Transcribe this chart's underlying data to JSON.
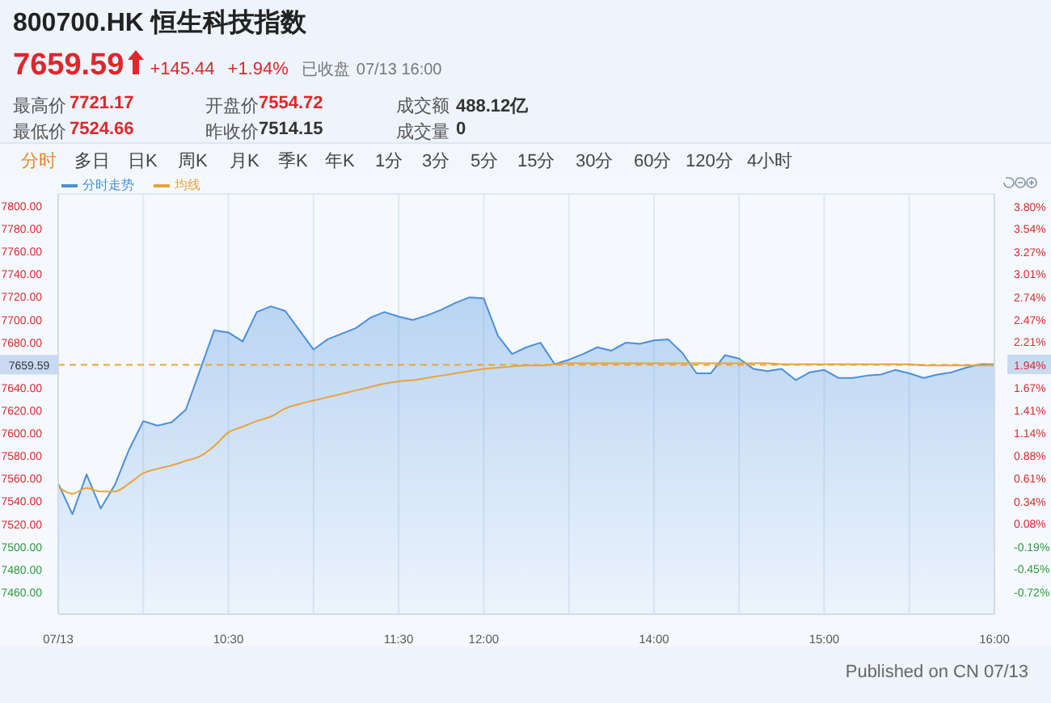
{
  "chart_data": {
    "type": "area",
    "title": "800700.HK 恒生科技指数",
    "annotations": [
      "7659.59",
      "+145.44",
      "+1.94%",
      "已收盘",
      "07/13 16:00",
      "最高价",
      "7721.17",
      "开盘价",
      "7554.72",
      "成交额",
      "488.12亿",
      "最低价",
      "7524.66",
      "昨收价",
      "7514.15",
      "成交量",
      "0",
      "分时",
      "多日",
      "日K",
      "周K",
      "月K",
      "季K",
      "年K",
      "1分",
      "3分",
      "5分",
      "15分",
      "30分",
      "60分",
      "120分",
      "4小时",
      "Published on CN 07/13"
    ],
    "categories": [
      "07/13",
      null,
      null,
      null,
      null,
      null,
      null,
      null,
      null,
      null,
      null,
      null,
      "10:30",
      null,
      null,
      null,
      null,
      null,
      null,
      null,
      null,
      null,
      null,
      null,
      "11:30",
      null,
      null,
      null,
      null,
      null,
      "12:00",
      null,
      null,
      null,
      null,
      null,
      null,
      null,
      null,
      null,
      null,
      null,
      "14:00",
      null,
      null,
      null,
      null,
      null,
      null,
      null,
      null,
      null,
      null,
      null,
      "15:00",
      null,
      null,
      null,
      null,
      null,
      null,
      null,
      null,
      null,
      null,
      null,
      "16:00"
    ],
    "series": [
      {
        "name": "分时走势",
        "color": "#4a8fdc",
        "values": [
          7555,
          7528,
          7563,
          7533,
          7554,
          7585,
          7610,
          7606,
          7609,
          7620,
          7655,
          7690,
          7688,
          7680,
          7706,
          7711,
          7707,
          7690,
          7673,
          7682,
          7687,
          7692,
          7701,
          7706,
          7702,
          7699,
          7703,
          7708,
          7714,
          7719,
          7718,
          7685,
          7669,
          7675,
          7679,
          7660,
          7664,
          7669,
          7675,
          7672,
          7679,
          7678,
          7681,
          7682,
          7670,
          7652,
          7652,
          7668,
          7665,
          7656,
          7654,
          7656,
          7646,
          7653,
          7655,
          7648,
          7648,
          7650,
          7651,
          7655,
          7652,
          7648,
          7651,
          7653,
          7657,
          7660,
          7660
        ]
      },
      {
        "name": "均线",
        "type": "line",
        "color": "#e8a33c",
        "values": [
          7552,
          7546,
          7551,
          7548,
          7548,
          7555,
          7564,
          7568,
          7571,
          7575,
          7579,
          7588,
          7600,
          7605,
          7610,
          7614,
          7621,
          7625,
          7628,
          7631,
          7634,
          7637,
          7640,
          7643,
          7645,
          7646,
          7648,
          7650,
          7652,
          7654,
          7656,
          7657,
          7658,
          7659,
          7659,
          7660,
          7661,
          7661,
          7661,
          7661,
          7661,
          7661,
          7661,
          7661,
          7661,
          7661,
          7661,
          7661,
          7661,
          7661,
          7661,
          7660,
          7660,
          7660,
          7660,
          7660,
          7660,
          7660,
          7660,
          7660,
          7660,
          7659,
          7659,
          7659,
          7659,
          7659,
          7659
        ]
      }
    ],
    "ylim": [
      7440,
      7810
    ],
    "yticks": [
      {
        "value": 7800,
        "label": "7800.00"
      },
      {
        "value": 7780,
        "label": "7780.00"
      },
      {
        "value": 7760,
        "label": "7760.00"
      },
      {
        "value": 7740,
        "label": "7740.00"
      },
      {
        "value": 7720,
        "label": "7720.00"
      },
      {
        "value": 7700,
        "label": "7700.00"
      },
      {
        "value": 7680,
        "label": "7680.00"
      },
      {
        "value": 7640,
        "label": "7640.00"
      },
      {
        "value": 7620,
        "label": "7620.00"
      },
      {
        "value": 7600,
        "label": "7600.00"
      },
      {
        "value": 7580,
        "label": "7580.00"
      },
      {
        "value": 7560,
        "label": "7560.00"
      },
      {
        "value": 7540,
        "label": "7540.00"
      },
      {
        "value": 7520,
        "label": "7520.00"
      },
      {
        "value": 7500,
        "label": "7500.00"
      },
      {
        "value": 7480,
        "label": "7480.00"
      },
      {
        "value": 7460,
        "label": "7460.00"
      }
    ],
    "y2lim": [
      -0.99,
      3.94
    ],
    "y2ticks": [
      {
        "value": 3.8,
        "label": "3.80%"
      },
      {
        "value": 3.54,
        "label": "3.54%"
      },
      {
        "value": 3.27,
        "label": "3.27%"
      },
      {
        "value": 3.01,
        "label": "3.01%"
      },
      {
        "value": 2.74,
        "label": "2.74%"
      },
      {
        "value": 2.47,
        "label": "2.47%"
      },
      {
        "value": 2.21,
        "label": "2.21%"
      },
      {
        "value": 1.94,
        "label": "1.94%"
      },
      {
        "value": 1.67,
        "label": "1.67%"
      },
      {
        "value": 1.41,
        "label": "1.41%"
      },
      {
        "value": 1.14,
        "label": "1.14%"
      },
      {
        "value": 0.88,
        "label": "0.88%"
      },
      {
        "value": 0.61,
        "label": "0.61%"
      },
      {
        "value": 0.34,
        "label": "0.34%"
      },
      {
        "value": 0.08,
        "label": "0.08%"
      },
      {
        "value": -0.19,
        "label": "-0.19%"
      },
      {
        "value": -0.45,
        "label": "-0.45%"
      },
      {
        "value": -0.72,
        "label": "-0.72%"
      }
    ],
    "ref_lines": [
      {
        "axis": "y",
        "value": 7659.59,
        "label": "7659.59",
        "color": "#e8a33c",
        "line_style": "dashed"
      }
    ],
    "grid": true,
    "legend": "top left",
    "marker": "none"
  }
}
